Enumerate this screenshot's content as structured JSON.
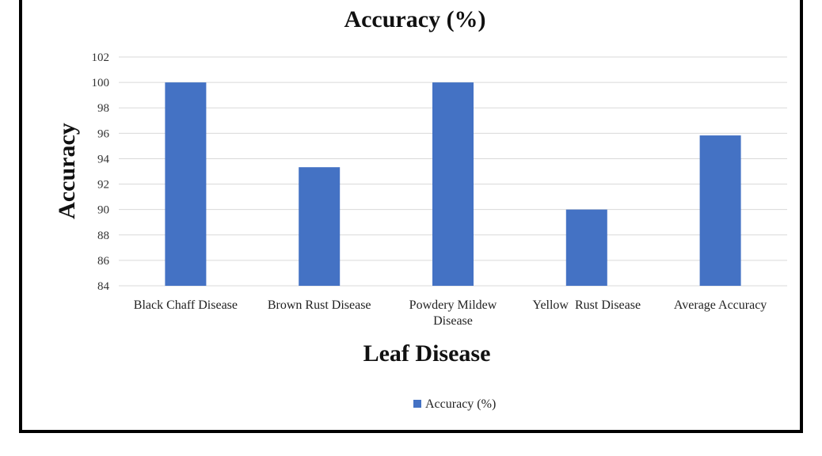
{
  "chart_data": {
    "type": "bar",
    "title": "Accuracy (%)",
    "xlabel": "Leaf Disease",
    "ylabel": "Accuracy",
    "ylim": [
      84,
      102
    ],
    "yticks": [
      84,
      86,
      88,
      90,
      92,
      94,
      96,
      98,
      100,
      102
    ],
    "grid": true,
    "legend_position": "bottom",
    "categories": [
      [
        "Black Chaff Disease"
      ],
      [
        "Brown Rust Disease"
      ],
      [
        "Powdery Mildew",
        "Disease"
      ],
      [
        "Yellow  Rust Disease"
      ],
      [
        "Average Accuracy"
      ]
    ],
    "series": [
      {
        "name": "Accuracy (%)",
        "color": "#4472c4",
        "values": [
          100,
          93.33,
          100,
          90,
          95.83
        ]
      }
    ]
  }
}
